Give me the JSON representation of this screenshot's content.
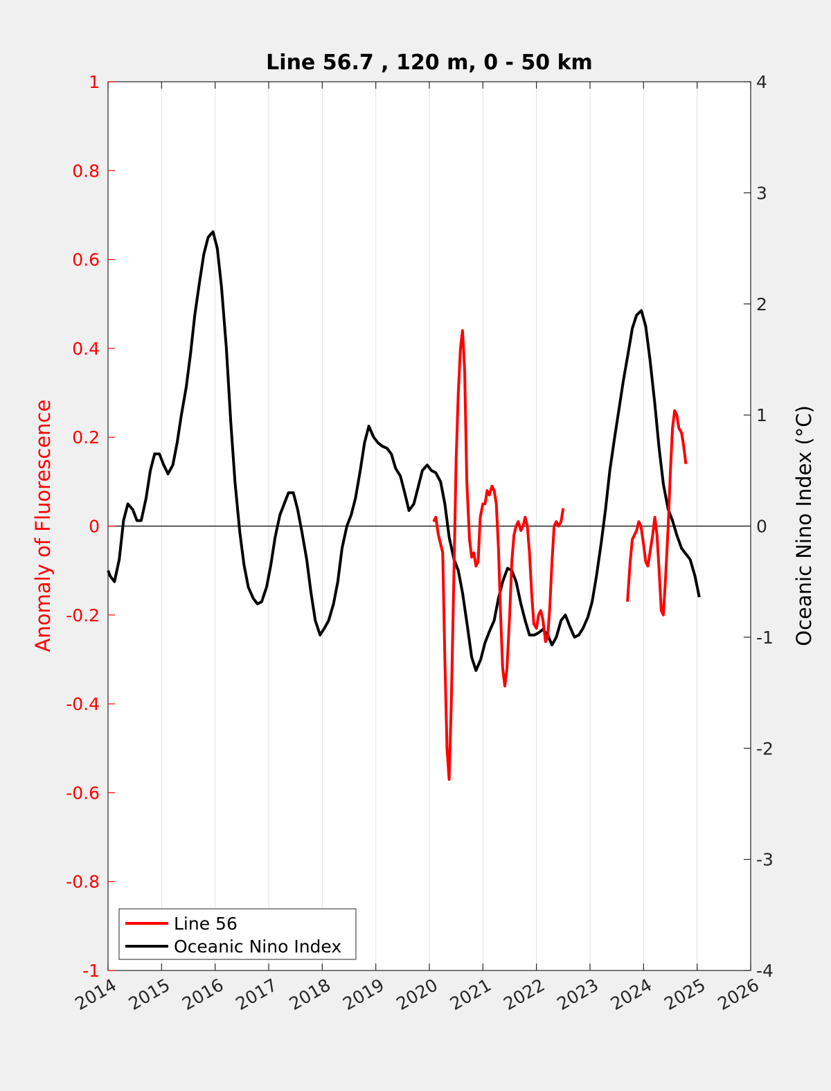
{
  "chart_data": {
    "type": "line",
    "title": "Line 56.7 , 120 m, 0 - 50 km",
    "ylabel_left": "Anomaly of Fluorescence",
    "ylabel_right": "Oceanic Nino Index (°C)",
    "xlim": [
      2014,
      2026
    ],
    "ylim_left": [
      -1,
      1
    ],
    "ylim_right": [
      -4,
      4
    ],
    "x_ticks": [
      "2014",
      "2015",
      "2016",
      "2017",
      "2018",
      "2019",
      "2020",
      "2021",
      "2022",
      "2023",
      "2024",
      "2025",
      "2026"
    ],
    "y_left_ticks": [
      "1",
      "0.8",
      "0.6",
      "0.4",
      "0.2",
      "0",
      "-0.2",
      "-0.4",
      "-0.6",
      "-0.8",
      "-1"
    ],
    "y_right_ticks": [
      "4",
      "3",
      "2",
      "1",
      "0",
      "-1",
      "-2",
      "-3",
      "-4"
    ],
    "grid": "vertical",
    "legend_position": "bottom-left",
    "colors": {
      "left_axis": "#ff0000",
      "line56": "#ff0000",
      "oni": "#000000"
    },
    "series": [
      {
        "name": "Line 56",
        "axis": "left",
        "segments": [
          [
            [
              2020.08,
              0.01
            ],
            [
              2020.12,
              0.02
            ],
            [
              2020.17,
              -0.02
            ],
            [
              2020.25,
              -0.06
            ],
            [
              2020.29,
              -0.3
            ],
            [
              2020.33,
              -0.5
            ],
            [
              2020.37,
              -0.57
            ],
            [
              2020.41,
              -0.4
            ],
            [
              2020.46,
              -0.1
            ],
            [
              2020.5,
              0.15
            ],
            [
              2020.54,
              0.3
            ],
            [
              2020.58,
              0.4
            ],
            [
              2020.62,
              0.44
            ],
            [
              2020.66,
              0.35
            ],
            [
              2020.7,
              0.1
            ],
            [
              2020.75,
              -0.03
            ],
            [
              2020.79,
              -0.07
            ],
            [
              2020.83,
              -0.06
            ],
            [
              2020.87,
              -0.09
            ],
            [
              2020.91,
              -0.08
            ],
            [
              2020.95,
              0.02
            ],
            [
              2021.0,
              0.05
            ],
            [
              2021.04,
              0.05
            ],
            [
              2021.08,
              0.08
            ],
            [
              2021.12,
              0.07
            ],
            [
              2021.17,
              0.09
            ],
            [
              2021.21,
              0.08
            ],
            [
              2021.25,
              0.05
            ],
            [
              2021.29,
              -0.05
            ],
            [
              2021.33,
              -0.2
            ],
            [
              2021.37,
              -0.32
            ],
            [
              2021.41,
              -0.36
            ],
            [
              2021.45,
              -0.32
            ],
            [
              2021.5,
              -0.2
            ],
            [
              2021.54,
              -0.08
            ],
            [
              2021.58,
              -0.02
            ],
            [
              2021.62,
              0.0
            ],
            [
              2021.66,
              0.01
            ],
            [
              2021.71,
              -0.01
            ],
            [
              2021.75,
              0.0
            ],
            [
              2021.79,
              0.02
            ],
            [
              2021.83,
              0.0
            ],
            [
              2021.87,
              -0.06
            ],
            [
              2021.91,
              -0.15
            ],
            [
              2021.95,
              -0.22
            ],
            [
              2022.0,
              -0.23
            ],
            [
              2022.04,
              -0.2
            ],
            [
              2022.08,
              -0.19
            ],
            [
              2022.12,
              -0.21
            ],
            [
              2022.17,
              -0.26
            ],
            [
              2022.21,
              -0.25
            ],
            [
              2022.25,
              -0.18
            ],
            [
              2022.29,
              -0.08
            ],
            [
              2022.33,
              0.0
            ],
            [
              2022.37,
              0.01
            ],
            [
              2022.41,
              0.0
            ],
            [
              2022.46,
              0.01
            ],
            [
              2022.5,
              0.04
            ]
          ],
          [
            [
              2023.7,
              -0.17
            ],
            [
              2023.75,
              -0.08
            ],
            [
              2023.79,
              -0.03
            ],
            [
              2023.83,
              -0.02
            ],
            [
              2023.87,
              -0.01
            ],
            [
              2023.91,
              0.01
            ],
            [
              2023.95,
              0.0
            ],
            [
              2024.0,
              -0.04
            ],
            [
              2024.04,
              -0.08
            ],
            [
              2024.08,
              -0.09
            ],
            [
              2024.12,
              -0.06
            ],
            [
              2024.17,
              -0.02
            ],
            [
              2024.21,
              0.02
            ],
            [
              2024.25,
              -0.02
            ],
            [
              2024.29,
              -0.1
            ],
            [
              2024.33,
              -0.19
            ],
            [
              2024.37,
              -0.2
            ],
            [
              2024.41,
              -0.12
            ],
            [
              2024.46,
              0.0
            ],
            [
              2024.5,
              0.12
            ],
            [
              2024.54,
              0.22
            ],
            [
              2024.58,
              0.26
            ],
            [
              2024.62,
              0.25
            ],
            [
              2024.66,
              0.22
            ],
            [
              2024.71,
              0.21
            ],
            [
              2024.75,
              0.18
            ],
            [
              2024.79,
              0.14
            ]
          ]
        ]
      },
      {
        "name": "Oceanic Nino Index",
        "axis": "right",
        "segments": [
          [
            [
              2014.0,
              -0.4
            ],
            [
              2014.04,
              -0.45
            ],
            [
              2014.12,
              -0.5
            ],
            [
              2014.21,
              -0.3
            ],
            [
              2014.29,
              0.05
            ],
            [
              2014.37,
              0.2
            ],
            [
              2014.46,
              0.15
            ],
            [
              2014.54,
              0.05
            ],
            [
              2014.62,
              0.05
            ],
            [
              2014.71,
              0.25
            ],
            [
              2014.79,
              0.5
            ],
            [
              2014.87,
              0.65
            ],
            [
              2014.96,
              0.65
            ],
            [
              2015.04,
              0.55
            ],
            [
              2015.12,
              0.47
            ],
            [
              2015.21,
              0.55
            ],
            [
              2015.29,
              0.75
            ],
            [
              2015.37,
              1.0
            ],
            [
              2015.46,
              1.25
            ],
            [
              2015.54,
              1.55
            ],
            [
              2015.62,
              1.9
            ],
            [
              2015.71,
              2.2
            ],
            [
              2015.79,
              2.45
            ],
            [
              2015.87,
              2.6
            ],
            [
              2015.96,
              2.65
            ],
            [
              2016.04,
              2.5
            ],
            [
              2016.12,
              2.15
            ],
            [
              2016.21,
              1.6
            ],
            [
              2016.29,
              0.95
            ],
            [
              2016.37,
              0.4
            ],
            [
              2016.46,
              -0.05
            ],
            [
              2016.54,
              -0.35
            ],
            [
              2016.62,
              -0.55
            ],
            [
              2016.71,
              -0.65
            ],
            [
              2016.79,
              -0.7
            ],
            [
              2016.87,
              -0.68
            ],
            [
              2016.96,
              -0.55
            ],
            [
              2017.04,
              -0.35
            ],
            [
              2017.12,
              -0.1
            ],
            [
              2017.21,
              0.1
            ],
            [
              2017.29,
              0.2
            ],
            [
              2017.37,
              0.3
            ],
            [
              2017.46,
              0.3
            ],
            [
              2017.54,
              0.15
            ],
            [
              2017.62,
              -0.05
            ],
            [
              2017.71,
              -0.3
            ],
            [
              2017.79,
              -0.6
            ],
            [
              2017.87,
              -0.85
            ],
            [
              2017.96,
              -0.98
            ],
            [
              2018.04,
              -0.92
            ],
            [
              2018.12,
              -0.85
            ],
            [
              2018.21,
              -0.7
            ],
            [
              2018.29,
              -0.5
            ],
            [
              2018.37,
              -0.2
            ],
            [
              2018.46,
              0.0
            ],
            [
              2018.54,
              0.1
            ],
            [
              2018.62,
              0.25
            ],
            [
              2018.71,
              0.5
            ],
            [
              2018.79,
              0.75
            ],
            [
              2018.87,
              0.9
            ],
            [
              2018.96,
              0.8
            ],
            [
              2019.04,
              0.75
            ],
            [
              2019.12,
              0.72
            ],
            [
              2019.21,
              0.7
            ],
            [
              2019.29,
              0.65
            ],
            [
              2019.37,
              0.52
            ],
            [
              2019.46,
              0.45
            ],
            [
              2019.54,
              0.3
            ],
            [
              2019.62,
              0.14
            ],
            [
              2019.71,
              0.2
            ],
            [
              2019.79,
              0.35
            ],
            [
              2019.87,
              0.5
            ],
            [
              2019.96,
              0.55
            ],
            [
              2020.04,
              0.5
            ],
            [
              2020.12,
              0.48
            ],
            [
              2020.21,
              0.4
            ],
            [
              2020.29,
              0.2
            ],
            [
              2020.37,
              -0.1
            ],
            [
              2020.46,
              -0.3
            ],
            [
              2020.54,
              -0.4
            ],
            [
              2020.62,
              -0.6
            ],
            [
              2020.71,
              -0.9
            ],
            [
              2020.79,
              -1.18
            ],
            [
              2020.87,
              -1.3
            ],
            [
              2020.96,
              -1.2
            ],
            [
              2021.04,
              -1.05
            ],
            [
              2021.12,
              -0.95
            ],
            [
              2021.21,
              -0.85
            ],
            [
              2021.29,
              -0.65
            ],
            [
              2021.37,
              -0.5
            ],
            [
              2021.46,
              -0.38
            ],
            [
              2021.54,
              -0.4
            ],
            [
              2021.62,
              -0.5
            ],
            [
              2021.71,
              -0.7
            ],
            [
              2021.79,
              -0.85
            ],
            [
              2021.87,
              -0.98
            ],
            [
              2021.96,
              -0.98
            ],
            [
              2022.04,
              -0.96
            ],
            [
              2022.12,
              -0.93
            ],
            [
              2022.21,
              -0.98
            ],
            [
              2022.29,
              -1.07
            ],
            [
              2022.37,
              -1.0
            ],
            [
              2022.46,
              -0.85
            ],
            [
              2022.54,
              -0.8
            ],
            [
              2022.62,
              -0.9
            ],
            [
              2022.71,
              -1.0
            ],
            [
              2022.79,
              -0.98
            ],
            [
              2022.87,
              -0.92
            ],
            [
              2022.96,
              -0.82
            ],
            [
              2023.04,
              -0.68
            ],
            [
              2023.12,
              -0.45
            ],
            [
              2023.21,
              -0.15
            ],
            [
              2023.29,
              0.15
            ],
            [
              2023.37,
              0.5
            ],
            [
              2023.46,
              0.8
            ],
            [
              2023.54,
              1.05
            ],
            [
              2023.62,
              1.3
            ],
            [
              2023.71,
              1.55
            ],
            [
              2023.79,
              1.78
            ],
            [
              2023.87,
              1.9
            ],
            [
              2023.96,
              1.94
            ],
            [
              2024.04,
              1.8
            ],
            [
              2024.12,
              1.5
            ],
            [
              2024.21,
              1.1
            ],
            [
              2024.29,
              0.7
            ],
            [
              2024.37,
              0.38
            ],
            [
              2024.46,
              0.15
            ],
            [
              2024.54,
              0.05
            ],
            [
              2024.62,
              -0.08
            ],
            [
              2024.71,
              -0.2
            ],
            [
              2024.79,
              -0.25
            ],
            [
              2024.87,
              -0.3
            ],
            [
              2024.96,
              -0.45
            ],
            [
              2025.04,
              -0.64
            ]
          ]
        ]
      }
    ]
  }
}
